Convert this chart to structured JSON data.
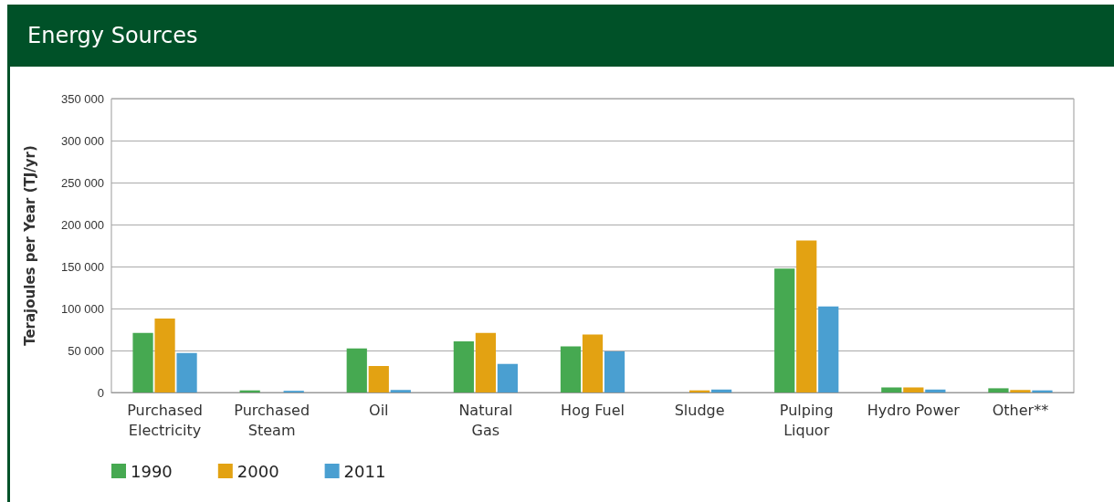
{
  "chart_data": {
    "type": "bar",
    "title": "Energy Sources",
    "ylabel": "Terajoules per Year (TJ/yr)",
    "categories": [
      "Purchased\nElectricity",
      "Purchased\nSteam",
      "Oil",
      "Natural\nGas",
      "Hog Fuel",
      "Sludge",
      "Pulping\nLiquor",
      "Hydro Power",
      "Other**"
    ],
    "series": [
      {
        "name": "1990",
        "color": "#46a951",
        "values": [
          71000,
          2500,
          52500,
          61000,
          55000,
          0,
          147500,
          6000,
          5000
        ]
      },
      {
        "name": "2000",
        "color": "#e3a212",
        "values": [
          88000,
          0,
          31500,
          71000,
          69000,
          2500,
          181000,
          6000,
          3000
        ]
      },
      {
        "name": "2011",
        "color": "#4a9fd1",
        "values": [
          47000,
          2000,
          3000,
          34000,
          49000,
          3500,
          102500,
          3500,
          2500
        ]
      }
    ],
    "ylim": [
      0,
      350000
    ],
    "yticks": [
      {
        "value": 0,
        "label": "0"
      },
      {
        "value": 50000,
        "label": "50 000"
      },
      {
        "value": 100000,
        "label": "100 000"
      },
      {
        "value": 150000,
        "label": "150 000"
      },
      {
        "value": 200000,
        "label": "200 000"
      },
      {
        "value": 250000,
        "label": "250 000"
      },
      {
        "value": 300000,
        "label": "300 000"
      },
      {
        "value": 350000,
        "label": "350 000"
      }
    ],
    "grid": "y",
    "legend": "bottom left"
  }
}
